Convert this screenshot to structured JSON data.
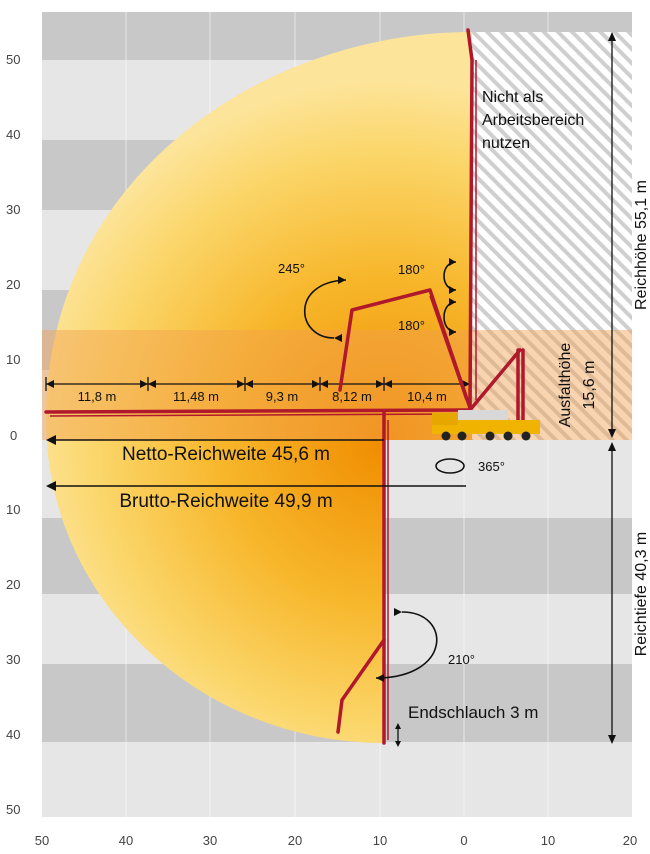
{
  "axis": {
    "x_ticks": [
      "50",
      "40",
      "30",
      "20",
      "10",
      "0",
      "10",
      "20"
    ],
    "y_ticks": [
      "50",
      "40",
      "30",
      "20",
      "10",
      "0",
      "10",
      "20",
      "30",
      "40",
      "50"
    ]
  },
  "segments": {
    "items": [
      {
        "label": "11,8 m"
      },
      {
        "label": "11,48 m"
      },
      {
        "label": "9,3 m"
      },
      {
        "label": "8,12 m"
      },
      {
        "label": "10,4 m"
      }
    ]
  },
  "reach": {
    "netto": "Netto-Reichweite 45,6 m",
    "brutto": "Brutto-Reichweite 49,9 m"
  },
  "vertical": {
    "reichhoehe": "Reichhöhe 55,1 m",
    "reichtiefe": "Reichtiefe 40,3 m",
    "ausfalthoehe_line1": "Ausfalthöhe",
    "ausfalthoehe_line2": "15,6 m"
  },
  "hatch_note": {
    "line1": "Nicht als",
    "line2": "Arbeitsbereich",
    "line3": "nutzen"
  },
  "angles": {
    "a245": "245°",
    "a180_top": "180°",
    "a180_bottom": "180°",
    "a365": "365°",
    "a210": "210°"
  },
  "endschlauch": "Endschlauch 3 m",
  "colors": {
    "band_dark": "#c8c8c8",
    "band_light": "#e6e6e6",
    "boom": "#b0182c",
    "truck": "#f0b400",
    "zone_orange": "#f2b27c"
  }
}
